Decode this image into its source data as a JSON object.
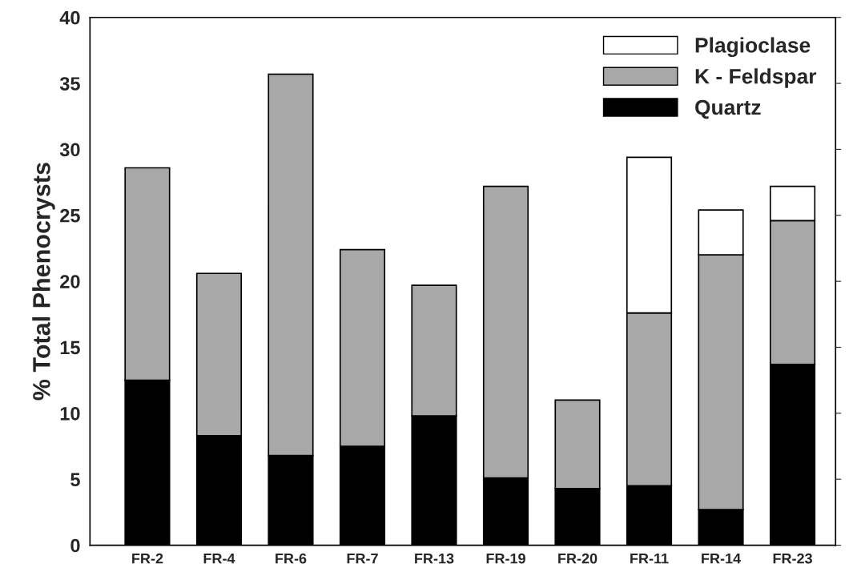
{
  "chart_data": {
    "type": "bar",
    "stacked": true,
    "ylabel": "% Total Phenocrysts",
    "categories": [
      "FR-2",
      "FR-4",
      "FR-6",
      "FR-7",
      "FR-13",
      "FR-19",
      "FR-20",
      "FR-11",
      "FR-14",
      "FR-23"
    ],
    "series": [
      {
        "name": "Quartz",
        "color": "#000000",
        "values": [
          12.5,
          8.3,
          6.8,
          7.5,
          9.8,
          5.1,
          4.3,
          4.5,
          2.7,
          13.7
        ]
      },
      {
        "name": "K - Feldspar",
        "color": "#a8a8a8",
        "values": [
          16.1,
          12.3,
          28.9,
          14.9,
          9.9,
          22.1,
          6.7,
          13.1,
          19.3,
          10.9
        ]
      },
      {
        "name": "Plagioclase",
        "color": "#ffffff",
        "values": [
          null,
          null,
          null,
          null,
          null,
          null,
          null,
          11.8,
          3.4,
          2.6
        ]
      }
    ],
    "ylim": [
      0,
      40
    ],
    "yticks": [
      0,
      5,
      10,
      15,
      20,
      25,
      30,
      35,
      40
    ],
    "grid": false,
    "legend": "top right"
  }
}
